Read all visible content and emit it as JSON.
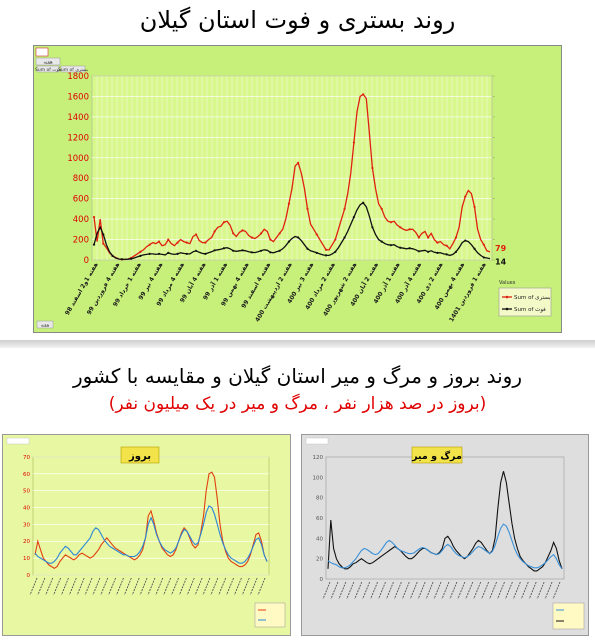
{
  "titles": {
    "main": "روند بستری و فوت استان گیلان",
    "second": "روند بروز و مرگ و میر استان گیلان و مقایسه با کشور",
    "second_sub": "(بروز در صد هزار نفر ، مرگ و میر در یک میلیون نفر)"
  },
  "chart_data": [
    {
      "type": "line",
      "title": "",
      "xlabel": "",
      "ylabel": "",
      "ylim": [
        0,
        1800
      ],
      "yticks": [
        0,
        200,
        400,
        600,
        800,
        1000,
        1200,
        1400,
        1600,
        1800
      ],
      "grid": true,
      "legend_position": "bottom-right",
      "legend_title": "Values",
      "toolbar_labels": [
        "هفته",
        "Sum of فوت",
        "Sum of بستری"
      ],
      "footer_label": "هفته",
      "x_tick_labels": [
        "هفته 1و2 اسفند 98",
        "هفته 4 فروردین 99",
        "هفته 1 خرداد 99",
        "هفته 4 تیر 99",
        "هفته 4 مرداد 99",
        "هفته 4 آبان 99",
        "هفته 1 آذر 99",
        "هفته 4 بهمن 99",
        "هفته 4 اسفند 99",
        "هفته 2 اردیبهشت 400",
        "هفته 3 تیر 400",
        "هفته 2 مرداد 400",
        "هفته 2 شهریور 400",
        "هفته 2 آبان 400",
        "هفته 1 آذر 400",
        "هفته 4 آذر 400",
        "هفته 2 دی 400",
        "هفته 4 بهمن 400",
        "هفته 1 فروردین 1401"
      ],
      "series": [
        {
          "name": "Sum of بستری",
          "color": "#e02010",
          "end_label": "79",
          "values": [
            420,
            180,
            400,
            160,
            120,
            70,
            40,
            25,
            10,
            5,
            5,
            10,
            20,
            40,
            60,
            80,
            100,
            130,
            150,
            170,
            160,
            180,
            140,
            150,
            200,
            160,
            140,
            170,
            200,
            180,
            170,
            160,
            230,
            250,
            190,
            170,
            170,
            200,
            220,
            280,
            320,
            330,
            370,
            380,
            340,
            260,
            230,
            270,
            290,
            280,
            240,
            220,
            210,
            230,
            260,
            300,
            280,
            200,
            180,
            220,
            260,
            300,
            400,
            550,
            700,
            920,
            950,
            850,
            700,
            500,
            350,
            300,
            250,
            200,
            150,
            100,
            100,
            150,
            200,
            300,
            400,
            500,
            650,
            850,
            1150,
            1450,
            1600,
            1620,
            1580,
            1250,
            900,
            700,
            550,
            500,
            420,
            380,
            370,
            380,
            340,
            320,
            300,
            290,
            300,
            300,
            270,
            220,
            260,
            280,
            220,
            260,
            200,
            170,
            180,
            150,
            140,
            110,
            160,
            220,
            320,
            520,
            620,
            680,
            650,
            520,
            300,
            200,
            150,
            90,
            79
          ]
        },
        {
          "name": "Sum of فوت",
          "color": "#111111",
          "end_label": "14",
          "values": [
            150,
            260,
            320,
            250,
            150,
            80,
            40,
            20,
            10,
            8,
            6,
            8,
            12,
            20,
            30,
            40,
            50,
            55,
            60,
            60,
            55,
            60,
            55,
            50,
            70,
            60,
            55,
            60,
            70,
            65,
            60,
            60,
            80,
            90,
            75,
            65,
            60,
            70,
            80,
            95,
            100,
            105,
            115,
            120,
            110,
            90,
            85,
            90,
            95,
            90,
            80,
            75,
            72,
            80,
            90,
            100,
            95,
            75,
            70,
            80,
            90,
            110,
            140,
            180,
            210,
            230,
            220,
            190,
            150,
            110,
            90,
            80,
            70,
            60,
            50,
            45,
            45,
            60,
            80,
            120,
            170,
            220,
            280,
            350,
            420,
            490,
            540,
            560,
            520,
            430,
            320,
            250,
            200,
            180,
            160,
            150,
            145,
            150,
            130,
            120,
            115,
            110,
            115,
            110,
            100,
            85,
            90,
            95,
            80,
            90,
            75,
            70,
            70,
            60,
            55,
            45,
            55,
            80,
            120,
            170,
            190,
            180,
            150,
            110,
            70,
            45,
            25,
            20,
            14
          ]
        }
      ]
    },
    {
      "type": "line",
      "title": "بروز",
      "xlabel": "",
      "ylabel": "",
      "ylim": [
        0,
        70
      ],
      "yticks": [
        0,
        10,
        20,
        30,
        40,
        50,
        60,
        70
      ],
      "grid": true,
      "legend_position": "none",
      "series": [
        {
          "name": "",
          "color": "#e04010",
          "end_label": "",
          "values": [
            12,
            20,
            15,
            10,
            8,
            6,
            5,
            4,
            5,
            8,
            10,
            12,
            11,
            10,
            9,
            10,
            12,
            13,
            12,
            11,
            10,
            11,
            13,
            15,
            18,
            20,
            22,
            20,
            18,
            16,
            15,
            14,
            13,
            12,
            11,
            10,
            9,
            10,
            12,
            15,
            22,
            35,
            38,
            32,
            25,
            20,
            16,
            14,
            12,
            11,
            12,
            15,
            20,
            25,
            28,
            26,
            22,
            18,
            16,
            18,
            25,
            35,
            50,
            60,
            61,
            58,
            45,
            30,
            20,
            14,
            10,
            8,
            7,
            6,
            5,
            5,
            6,
            8,
            12,
            18,
            24,
            25,
            20,
            12,
            8
          ]
        },
        {
          "name": "",
          "color": "#2a86d8",
          "end_label": "",
          "values": [
            13,
            11,
            10,
            9,
            8,
            7,
            7,
            8,
            10,
            13,
            15,
            17,
            16,
            14,
            12,
            12,
            14,
            16,
            18,
            20,
            22,
            26,
            28,
            27,
            24,
            21,
            19,
            17,
            16,
            15,
            14,
            13,
            12,
            12,
            11,
            11,
            11,
            12,
            14,
            17,
            22,
            30,
            34,
            30,
            24,
            20,
            17,
            15,
            14,
            13,
            14,
            16,
            20,
            24,
            27,
            26,
            23,
            20,
            18,
            19,
            24,
            30,
            37,
            41,
            40,
            36,
            30,
            24,
            19,
            15,
            12,
            10,
            9,
            8,
            7,
            7,
            8,
            10,
            13,
            17,
            21,
            22,
            18,
            12,
            8
          ]
        }
      ]
    },
    {
      "type": "line",
      "title": "مرگ و میر",
      "xlabel": "",
      "ylabel": "",
      "ylim": [
        0,
        120
      ],
      "yticks": [
        0,
        20,
        40,
        60,
        80,
        100,
        120
      ],
      "grid": false,
      "legend_position": "bottom-right",
      "series": [
        {
          "name": "",
          "color": "#111111",
          "end_label": "",
          "values": [
            10,
            58,
            30,
            20,
            15,
            12,
            10,
            10,
            12,
            15,
            16,
            18,
            20,
            18,
            16,
            15,
            16,
            18,
            20,
            22,
            24,
            26,
            28,
            30,
            32,
            30,
            28,
            25,
            22,
            20,
            20,
            22,
            25,
            28,
            30,
            30,
            28,
            26,
            25,
            24,
            26,
            30,
            40,
            42,
            38,
            32,
            28,
            25,
            22,
            20,
            22,
            26,
            30,
            35,
            38,
            36,
            32,
            28,
            25,
            28,
            40,
            70,
            95,
            106,
            95,
            75,
            55,
            40,
            30,
            22,
            18,
            15,
            12,
            10,
            8,
            8,
            10,
            12,
            16,
            22,
            28,
            36,
            30,
            18,
            10
          ]
        },
        {
          "name": "",
          "color": "#3a90d8",
          "end_label": "",
          "values": [
            18,
            16,
            15,
            14,
            12,
            11,
            11,
            12,
            14,
            17,
            20,
            24,
            28,
            30,
            29,
            27,
            25,
            24,
            25,
            28,
            32,
            36,
            38,
            36,
            33,
            30,
            28,
            27,
            26,
            25,
            25,
            26,
            28,
            30,
            31,
            30,
            28,
            26,
            25,
            24,
            25,
            28,
            32,
            34,
            32,
            28,
            25,
            23,
            22,
            21,
            22,
            24,
            27,
            30,
            32,
            31,
            29,
            27,
            25,
            27,
            33,
            42,
            50,
            54,
            52,
            46,
            38,
            30,
            24,
            20,
            17,
            15,
            13,
            12,
            11,
            11,
            12,
            14,
            16,
            19,
            22,
            24,
            20,
            14,
            10
          ]
        }
      ]
    }
  ]
}
